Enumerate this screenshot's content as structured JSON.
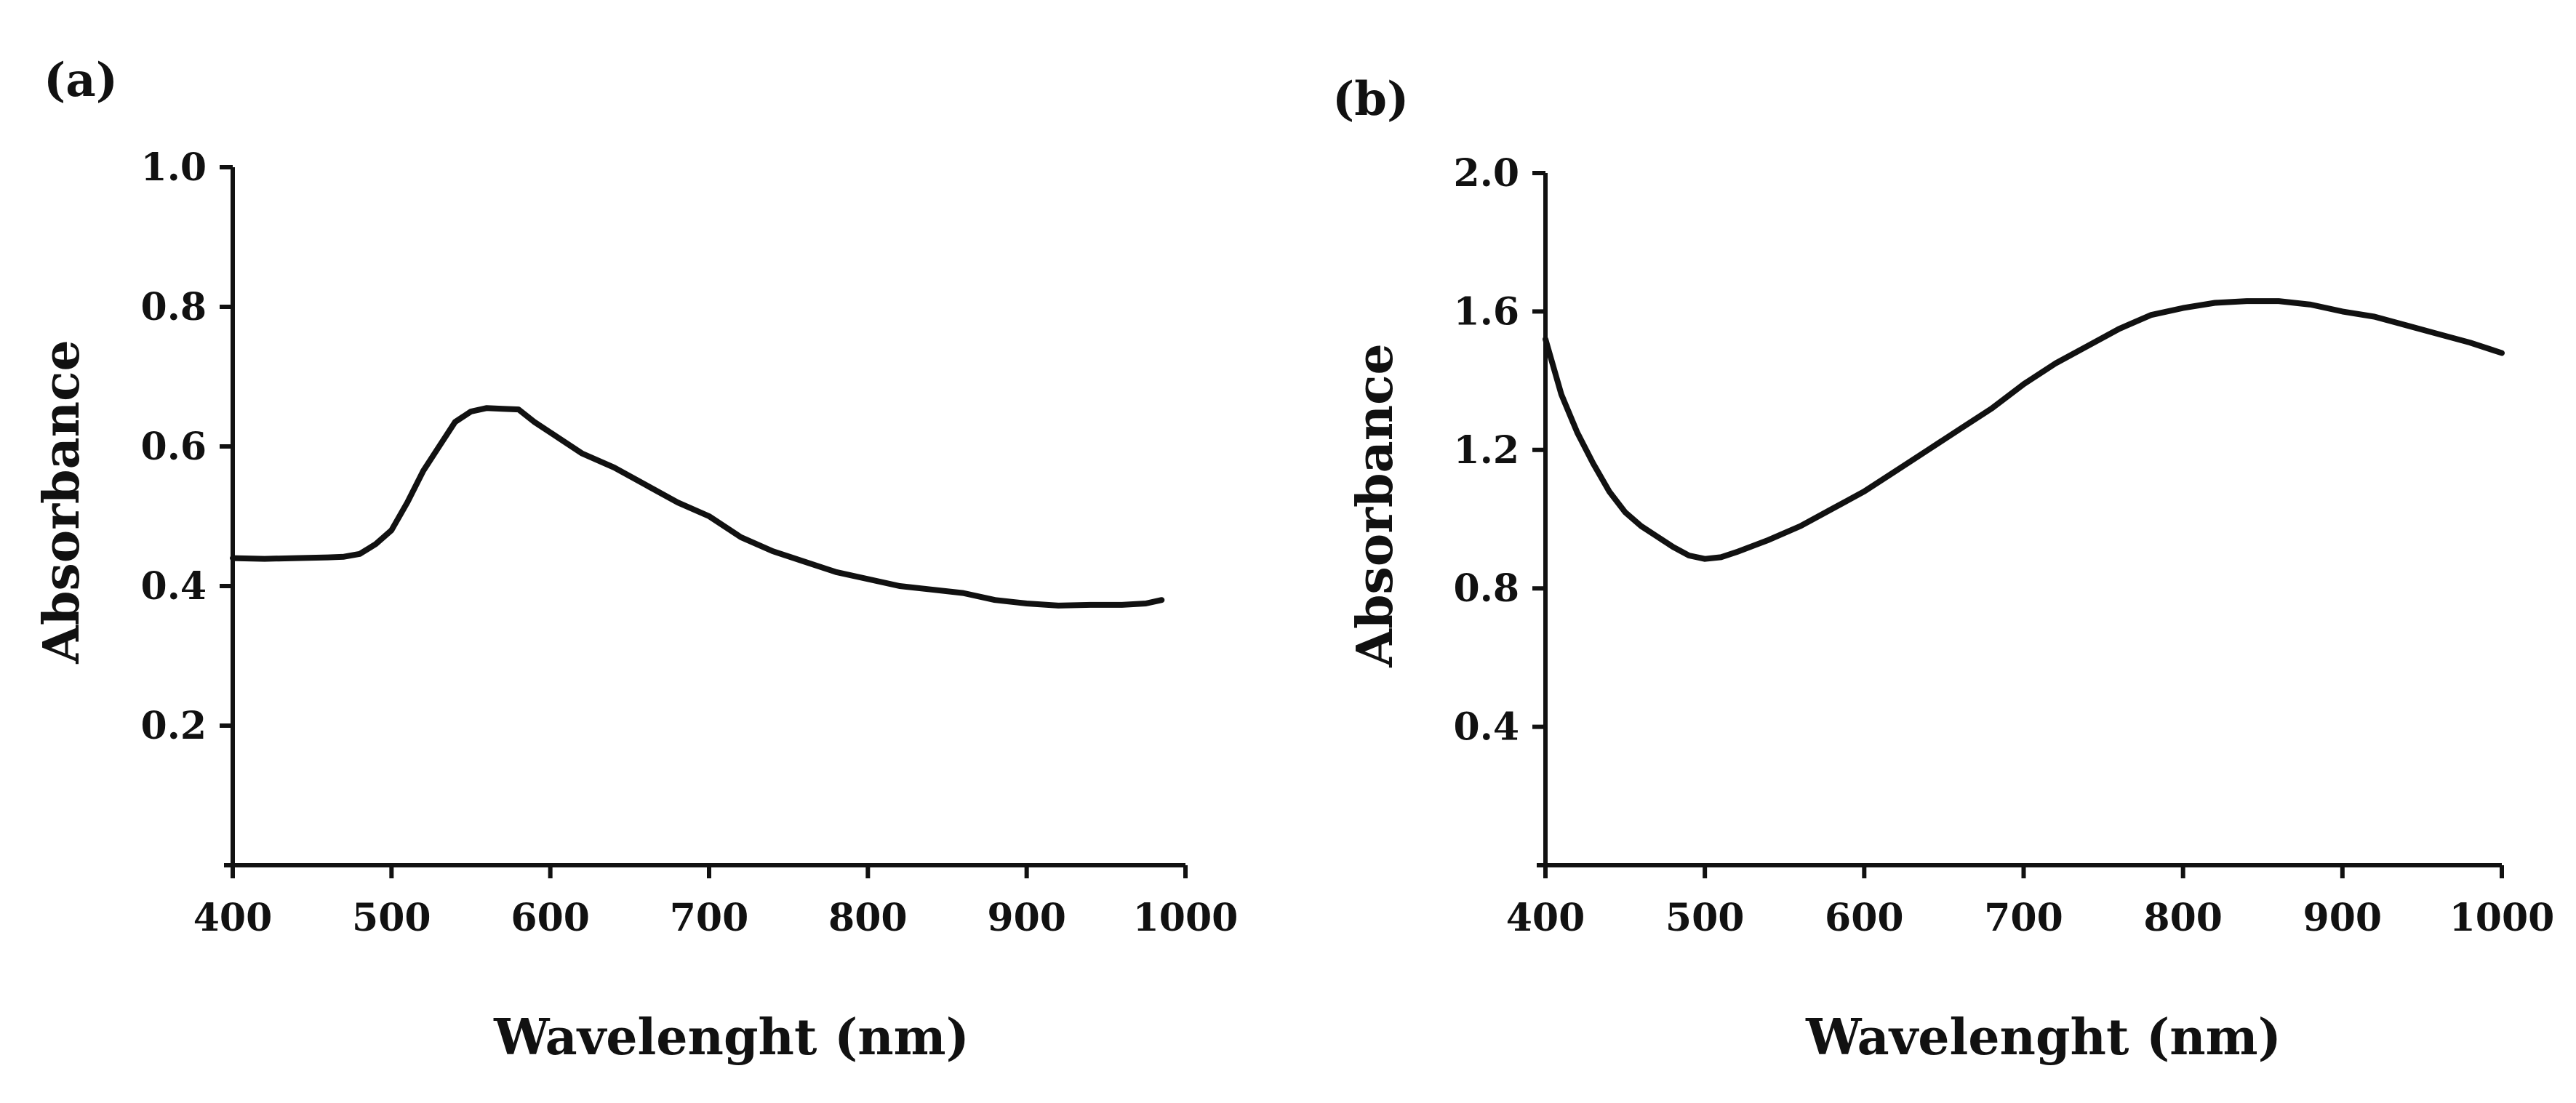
{
  "chart_data": [
    {
      "type": "line",
      "panel_label": "(a)",
      "title": "",
      "xlabel": "Wavelenght (nm)",
      "ylabel": "Absorbance",
      "xlim": [
        400,
        1000
      ],
      "ylim": [
        0,
        1.0
      ],
      "x_ticks": [
        400,
        500,
        600,
        700,
        800,
        900,
        1000
      ],
      "x_tick_labels": [
        "400",
        "500",
        "600",
        "700",
        "800",
        "900",
        "1000"
      ],
      "y_ticks": [
        0.2,
        0.4,
        0.6,
        0.8,
        1.0
      ],
      "y_tick_labels": [
        "0.2",
        "0.4",
        "0.6",
        "0.8",
        "1.0"
      ],
      "grid": false,
      "series": [
        {
          "name": "Absorbance",
          "x": [
            400,
            420,
            440,
            460,
            470,
            480,
            490,
            500,
            510,
            520,
            530,
            540,
            550,
            560,
            570,
            580,
            590,
            600,
            620,
            640,
            660,
            680,
            700,
            720,
            740,
            760,
            780,
            800,
            820,
            840,
            860,
            880,
            900,
            920,
            940,
            960,
            975,
            985
          ],
          "y": [
            0.44,
            0.439,
            0.44,
            0.441,
            0.442,
            0.446,
            0.46,
            0.48,
            0.52,
            0.565,
            0.6,
            0.635,
            0.65,
            0.655,
            0.654,
            0.653,
            0.635,
            0.62,
            0.59,
            0.57,
            0.545,
            0.52,
            0.5,
            0.47,
            0.45,
            0.435,
            0.42,
            0.41,
            0.4,
            0.395,
            0.39,
            0.38,
            0.375,
            0.372,
            0.373,
            0.373,
            0.375,
            0.38
          ]
        }
      ]
    },
    {
      "type": "line",
      "panel_label": "(b)",
      "title": "",
      "xlabel": "Wavelenght (nm)",
      "ylabel": "Absorbance",
      "xlim": [
        400,
        1000
      ],
      "ylim": [
        0,
        2.0
      ],
      "x_ticks": [
        400,
        500,
        600,
        700,
        800,
        900,
        1000
      ],
      "x_tick_labels": [
        "400",
        "500",
        "600",
        "700",
        "800",
        "900",
        "1000"
      ],
      "y_ticks": [
        0.4,
        0.8,
        1.2,
        1.6,
        2.0
      ],
      "y_tick_labels": [
        "0.4",
        "0.8",
        "1.2",
        "1.6",
        "2.0"
      ],
      "grid": false,
      "series": [
        {
          "name": "Absorbance",
          "x": [
            400,
            410,
            420,
            430,
            440,
            450,
            460,
            470,
            480,
            490,
            500,
            510,
            520,
            540,
            560,
            580,
            600,
            620,
            640,
            660,
            680,
            700,
            720,
            740,
            760,
            780,
            800,
            820,
            840,
            860,
            880,
            900,
            920,
            940,
            960,
            980,
            1000
          ],
          "y": [
            1.52,
            1.36,
            1.25,
            1.16,
            1.08,
            1.02,
            0.98,
            0.95,
            0.92,
            0.895,
            0.885,
            0.89,
            0.905,
            0.94,
            0.98,
            1.03,
            1.08,
            1.14,
            1.2,
            1.26,
            1.32,
            1.39,
            1.45,
            1.5,
            1.55,
            1.59,
            1.61,
            1.625,
            1.63,
            1.63,
            1.62,
            1.6,
            1.585,
            1.56,
            1.535,
            1.51,
            1.48
          ]
        }
      ]
    }
  ]
}
